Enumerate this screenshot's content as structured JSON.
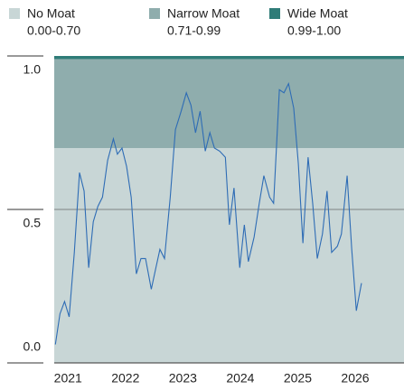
{
  "chart_data": {
    "type": "line",
    "bands": [
      {
        "name": "No Moat",
        "range": "0.00-0.70",
        "to": 0.7,
        "color": "#c8d6d6"
      },
      {
        "name": "Narrow Moat",
        "range": "0.71-0.99",
        "to": 0.99,
        "color": "#8fadad"
      },
      {
        "name": "Wide Moat",
        "range": "0.99-1.00",
        "to": 1.0,
        "color": "#2f7c78"
      }
    ],
    "x": [
      2020.78,
      2020.86,
      2020.94,
      2021.02,
      2021.11,
      2021.2,
      2021.28,
      2021.36,
      2021.44,
      2021.52,
      2021.6,
      2021.69,
      2021.79,
      2021.86,
      2021.94,
      2022.02,
      2022.1,
      2022.19,
      2022.27,
      2022.35,
      2022.45,
      2022.53,
      2022.6,
      2022.68,
      2022.78,
      2022.87,
      2022.97,
      2023.06,
      2023.14,
      2023.22,
      2023.3,
      2023.39,
      2023.47,
      2023.55,
      2023.64,
      2023.74,
      2023.81,
      2023.89,
      2023.99,
      2024.07,
      2024.14,
      2024.24,
      2024.33,
      2024.41,
      2024.51,
      2024.58,
      2024.68,
      2024.76,
      2024.84,
      2024.93,
      2025.01,
      2025.09,
      2025.18,
      2025.26,
      2025.34,
      2025.43,
      2025.51,
      2025.59,
      2025.69,
      2025.76,
      2025.86,
      2025.94,
      2026.02,
      2026.11
    ],
    "series": [
      {
        "color": "#2e6cb5",
        "values": [
          0.06,
          0.16,
          0.2,
          0.15,
          0.36,
          0.62,
          0.56,
          0.31,
          0.46,
          0.51,
          0.54,
          0.66,
          0.73,
          0.68,
          0.7,
          0.64,
          0.54,
          0.29,
          0.34,
          0.34,
          0.24,
          0.31,
          0.37,
          0.34,
          0.54,
          0.76,
          0.82,
          0.88,
          0.84,
          0.75,
          0.82,
          0.69,
          0.75,
          0.7,
          0.69,
          0.67,
          0.45,
          0.57,
          0.31,
          0.45,
          0.33,
          0.41,
          0.52,
          0.61,
          0.54,
          0.52,
          0.89,
          0.88,
          0.91,
          0.83,
          0.65,
          0.39,
          0.67,
          0.52,
          0.34,
          0.42,
          0.56,
          0.36,
          0.38,
          0.42,
          0.61,
          0.37,
          0.17,
          0.26
        ]
      }
    ],
    "xlim": [
      2020.76,
      2026.85
    ],
    "xticks": [
      2021,
      2022,
      2023,
      2024,
      2025,
      2026
    ],
    "ylim": [
      0,
      1.0
    ],
    "yticks": [
      {
        "value": 0,
        "label": "0.0"
      },
      {
        "value": 0.5,
        "label": "0.5"
      },
      {
        "value": 1.0,
        "label": "1.0"
      }
    ]
  }
}
